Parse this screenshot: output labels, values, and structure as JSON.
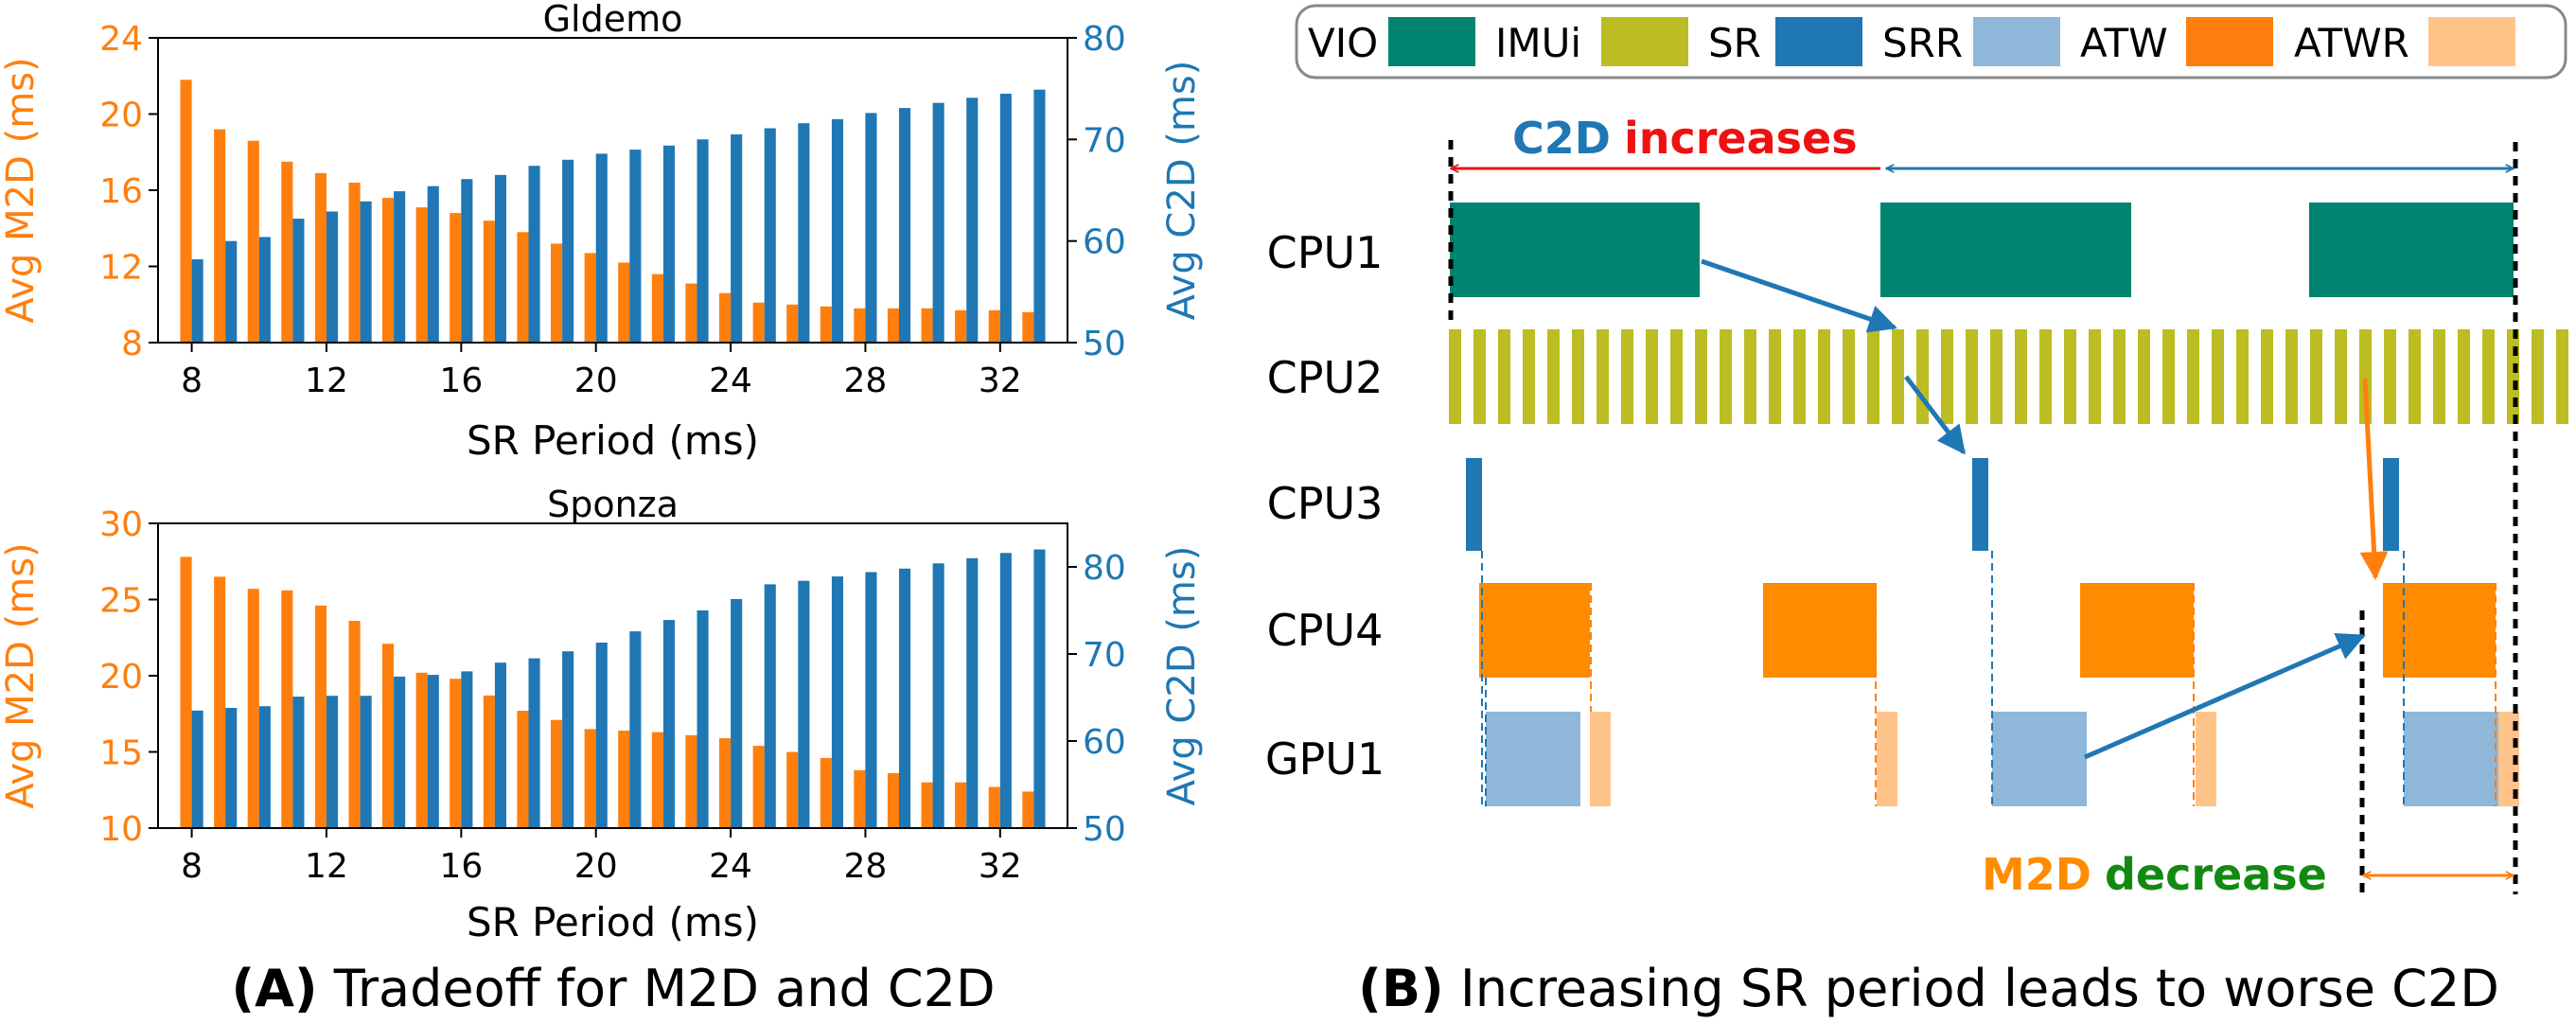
{
  "colors": {
    "orange": "#ff7f0e",
    "blue": "#1f77b4",
    "vio": "#00836f",
    "imui": "#bcbd22",
    "srr": "#8fb7d9",
    "atwr": "#ffc48a",
    "red": "#ee1111",
    "green": "#128a12"
  },
  "chart_data": [
    {
      "type": "bar",
      "title": "Gldemo",
      "xlabel": "SR Period (ms)",
      "ylabel_left": "Avg M2D (ms)",
      "ylabel_right": "Avg C2D (ms)",
      "xlim": [
        7,
        34
      ],
      "xticks": [
        8,
        12,
        16,
        20,
        24,
        28,
        32
      ],
      "ylim_left": [
        8,
        24
      ],
      "yticks_left": [
        8,
        12,
        16,
        20,
        24
      ],
      "ylim_right": [
        50,
        80
      ],
      "yticks_right": [
        50,
        60,
        70,
        80
      ],
      "x": [
        8,
        9,
        10,
        11,
        12,
        13,
        14,
        15,
        16,
        17,
        18,
        19,
        20,
        21,
        22,
        23,
        24,
        25,
        26,
        27,
        28,
        29,
        30,
        31,
        32,
        33
      ],
      "series": [
        {
          "name": "Avg M2D",
          "axis": "left",
          "color": "orange",
          "values": [
            21.8,
            19.2,
            18.6,
            17.5,
            16.9,
            16.4,
            15.6,
            15.1,
            14.8,
            14.4,
            13.8,
            13.2,
            12.7,
            12.2,
            11.6,
            11.1,
            10.6,
            10.1,
            10.0,
            9.9,
            9.8,
            9.8,
            9.8,
            9.7,
            9.7,
            9.6
          ]
        },
        {
          "name": "Avg C2D",
          "axis": "right",
          "color": "blue",
          "values": [
            58.2,
            60.0,
            60.4,
            62.2,
            62.9,
            63.9,
            64.9,
            65.4,
            66.1,
            66.5,
            67.4,
            68.0,
            68.6,
            69.0,
            69.4,
            70.0,
            70.5,
            71.1,
            71.6,
            72.0,
            72.6,
            73.1,
            73.6,
            74.1,
            74.5,
            74.9
          ]
        }
      ]
    },
    {
      "type": "bar",
      "title": "Sponza",
      "xlabel": "SR Period (ms)",
      "ylabel_left": "Avg M2D (ms)",
      "ylabel_right": "Avg C2D (ms)",
      "xlim": [
        7,
        34
      ],
      "xticks": [
        8,
        12,
        16,
        20,
        24,
        28,
        32
      ],
      "ylim_left": [
        10,
        30
      ],
      "yticks_left": [
        10,
        15,
        20,
        25,
        30
      ],
      "ylim_right": [
        50,
        85
      ],
      "yticks_right": [
        50,
        60,
        70,
        80
      ],
      "x": [
        8,
        9,
        10,
        11,
        12,
        13,
        14,
        15,
        16,
        17,
        18,
        19,
        20,
        21,
        22,
        23,
        24,
        25,
        26,
        27,
        28,
        29,
        30,
        31,
        32,
        33
      ],
      "series": [
        {
          "name": "Avg M2D",
          "axis": "left",
          "color": "orange",
          "values": [
            27.8,
            26.5,
            25.7,
            25.6,
            24.6,
            23.6,
            22.1,
            20.2,
            19.8,
            18.7,
            17.7,
            17.1,
            16.5,
            16.4,
            16.3,
            16.1,
            15.9,
            15.4,
            15.0,
            14.6,
            13.8,
            13.6,
            13.0,
            13.0,
            12.7,
            12.4
          ]
        },
        {
          "name": "Avg C2D",
          "axis": "right",
          "color": "blue",
          "values": [
            63.5,
            63.8,
            64.0,
            65.1,
            65.2,
            65.2,
            67.4,
            67.6,
            68.0,
            69.0,
            69.5,
            70.3,
            71.3,
            72.6,
            73.9,
            75.0,
            76.3,
            78.0,
            78.4,
            78.9,
            79.4,
            79.8,
            80.4,
            81.0,
            81.6,
            82.0
          ]
        }
      ]
    }
  ],
  "diagram": {
    "legend": [
      {
        "label": "VIO",
        "color": "vio"
      },
      {
        "label": "IMUi",
        "color": "imui"
      },
      {
        "label": "SR",
        "color": "blue"
      },
      {
        "label": "SRR",
        "color": "srr"
      },
      {
        "label": "ATW",
        "color": "orange"
      },
      {
        "label": "ATWR",
        "color": "atwr"
      }
    ],
    "rows": [
      "CPU1",
      "CPU2",
      "CPU3",
      "CPU4",
      "GPU1"
    ],
    "top_label_1": "C2D",
    "top_label_2": "increases",
    "bottom_label_1": "M2D",
    "bottom_label_2": "decrease"
  },
  "captions": {
    "a_prefix": "(A)",
    "a_text": " Tradeoff for M2D and C2D",
    "b_prefix": "(B)",
    "b_text": " Increasing SR period leads to worse C2D"
  }
}
